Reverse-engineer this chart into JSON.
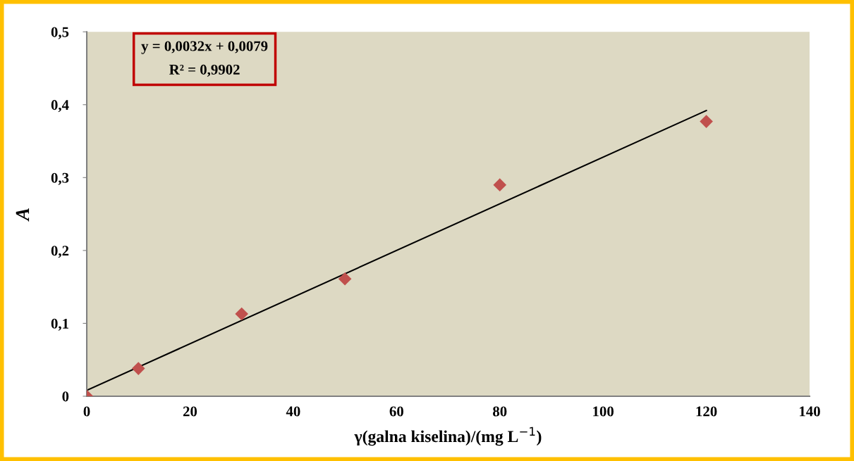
{
  "chart_data": {
    "type": "scatter",
    "xlabel": "γ(galna kiselina)/(mg L$^{−1}$)",
    "ylabel": "A",
    "annotations": [
      "y = 0,0032x + 0,0079",
      "R² = 0,9902"
    ],
    "marker": "diamond",
    "grid": false,
    "legend": false,
    "xlim": [
      0,
      140
    ],
    "xticks": [
      0,
      20,
      40,
      60,
      80,
      100,
      120,
      140
    ],
    "ylim": [
      0,
      0.5
    ],
    "yticks": [
      0,
      {
        "value": 0.1,
        "label": "0,1"
      },
      {
        "value": 0.2,
        "label": "0,2"
      },
      {
        "value": 0.3,
        "label": "0,3"
      },
      {
        "value": 0.4,
        "label": "0,4"
      },
      {
        "value": 0.5,
        "label": "0,5"
      }
    ],
    "series": [
      {
        "color": "#c0504d",
        "x": [
          0,
          10,
          30,
          50,
          80,
          120
        ],
        "values": [
          0,
          0.038,
          0.113,
          0.161,
          0.29,
          0.377
        ]
      },
      {
        "type": "line",
        "color": "#000000",
        "x": [
          0,
          120
        ],
        "values": [
          0.008,
          0.392
        ],
        "marker": "none",
        "line_style": "solid"
      }
    ]
  }
}
